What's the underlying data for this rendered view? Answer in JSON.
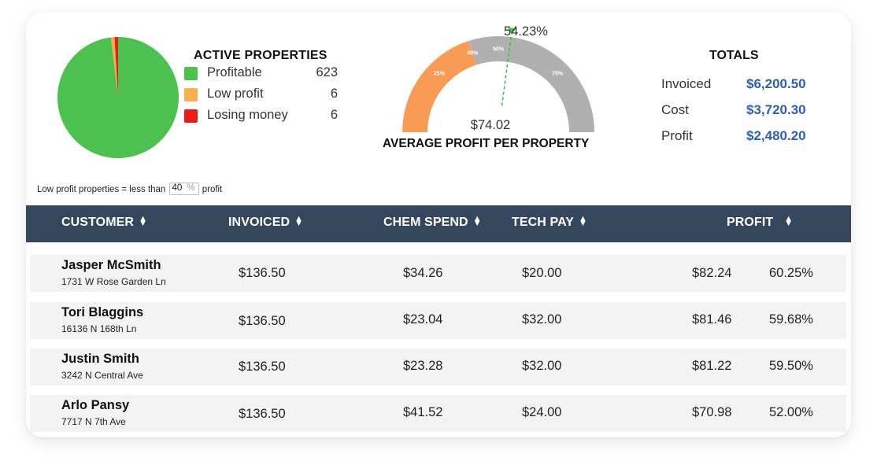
{
  "summary": {
    "active_properties": {
      "title": "ACTIVE PROPERTIES",
      "items": [
        {
          "label": "Profitable",
          "count": 623,
          "color": "#4dc14f"
        },
        {
          "label": "Low profit",
          "count": 6,
          "color": "#f7b04b"
        },
        {
          "label": "Losing money",
          "count": 6,
          "color": "#ec1b1b"
        }
      ]
    },
    "gauge": {
      "title": "AVERAGE PROFIT PER PROPERTY",
      "value_text": "$74.02",
      "pointer_label": "54.23%",
      "pointer_percent": 54.23,
      "fill_percent": 40,
      "tick_labels": [
        "25%",
        "40%",
        "50%",
        "75%"
      ],
      "colors": {
        "fill": "#f89b55",
        "track": "#b0b0b0",
        "pointer": "#3cc43c"
      }
    },
    "totals": {
      "title": "TOTALS",
      "rows": [
        {
          "label": "Invoiced",
          "value": "$6,200.50"
        },
        {
          "label": "Cost",
          "value": "$3,720.30"
        },
        {
          "label": "Profit",
          "value": "$2,480.20"
        }
      ],
      "value_color": "#2c5dbb"
    },
    "threshold_note": {
      "prefix": "Low profit properties = less than",
      "input_value": "40",
      "unit": "%",
      "suffix": "profit"
    }
  },
  "table": {
    "header_color": "#34475c",
    "columns": [
      "CUSTOMER",
      "INVOICED",
      "CHEM SPEND",
      "TECH PAY",
      "PROFIT"
    ],
    "rows": [
      {
        "name": "Jasper McSmith",
        "address": "1731 W Rose Garden Ln",
        "invoiced": "$136.50",
        "chem_spend": "$34.26",
        "tech_pay": "$20.00",
        "profit": "$82.24",
        "profit_pct": "60.25%"
      },
      {
        "name": "Tori Blaggins",
        "address": "16136 N 168th Ln",
        "invoiced": "$136.50",
        "chem_spend": "$23.04",
        "tech_pay": "$32.00",
        "profit": "$81.46",
        "profit_pct": "59.68%"
      },
      {
        "name": "Justin Smith",
        "address": "3242 N Central Ave",
        "invoiced": "$136.50",
        "chem_spend": "$23.28",
        "tech_pay": "$32.00",
        "profit": "$81.22",
        "profit_pct": "59.50%"
      },
      {
        "name": "Arlo Pansy",
        "address": "7717 N 7th Ave",
        "invoiced": "$136.50",
        "chem_spend": "$41.52",
        "tech_pay": "$24.00",
        "profit": "$70.98",
        "profit_pct": "52.00%"
      }
    ]
  }
}
